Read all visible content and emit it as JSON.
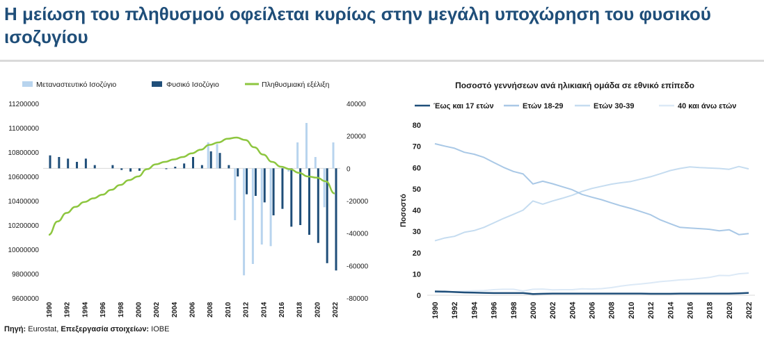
{
  "title": "Η μείωση του πληθυσμού οφείλεται κυρίως στην μεγάλη υποχώρηση του φυσικού ισοζυγίου",
  "source": {
    "label": "Πηγή:",
    "value": "Eurostat,",
    "label2": "Επεξεργασία στοιχείων:",
    "value2": "IOBE"
  },
  "colors": {
    "title": "#1f4e79",
    "migration": "#b8d4ee",
    "natural": "#1f4e79",
    "population": "#8dc63f",
    "under17": "#1f4e79",
    "age18_29": "#a9c8e6",
    "age30_39": "#c5dcf0",
    "age40plus": "#dce9f6"
  },
  "chart_data": [
    {
      "type": "bar+line",
      "title": "",
      "x": [
        "1990",
        "1991",
        "1992",
        "1993",
        "1994",
        "1995",
        "1996",
        "1997",
        "1998",
        "1999",
        "2000",
        "2001",
        "2002",
        "2003",
        "2004",
        "2005",
        "2006",
        "2007",
        "2008",
        "2009",
        "2010",
        "2011",
        "2012",
        "2013",
        "2014",
        "2015",
        "2016",
        "2017",
        "2018",
        "2019",
        "2020",
        "2021",
        "2022"
      ],
      "x_tick_labels": [
        "1990",
        "1992",
        "1994",
        "1996",
        "1998",
        "2000",
        "2002",
        "2004",
        "2006",
        "2008",
        "2010",
        "2012",
        "2014",
        "2016",
        "2018",
        "2020",
        "2022"
      ],
      "series": [
        {
          "name": "Μεταναστευτικό Ισοζύγιο",
          "kind": "bar",
          "axis": "right",
          "values": [
            0,
            0,
            0,
            0,
            0,
            0,
            0,
            0,
            0,
            0,
            0,
            0,
            0,
            0,
            0,
            0,
            0,
            0,
            16000,
            15000,
            0,
            -32000,
            -66000,
            -59000,
            -47000,
            -48000,
            0,
            -2000,
            16000,
            28000,
            7000,
            -24000,
            16000
          ]
        },
        {
          "name": "Φυσικό Ισοζύγιο",
          "kind": "bar",
          "axis": "right",
          "values": [
            8000,
            7000,
            6000,
            4000,
            6000,
            2000,
            0,
            2000,
            -1000,
            -2000,
            -1500,
            0,
            0,
            -500,
            1000,
            3000,
            7000,
            2000,
            10500,
            9500,
            2000,
            -5000,
            -16000,
            -17000,
            -21000,
            -29000,
            -25000,
            -36000,
            -35000,
            -41000,
            -46000,
            -58500,
            -63000
          ]
        },
        {
          "name": "Πληθυσμιακή εξέλιξη",
          "kind": "line",
          "axis": "left",
          "values": [
            10120000,
            10230000,
            10300000,
            10350000,
            10390000,
            10420000,
            10450000,
            10490000,
            10530000,
            10570000,
            10600000,
            10660000,
            10700000,
            10720000,
            10740000,
            10760000,
            10790000,
            10820000,
            10860000,
            10880000,
            10910000,
            10920000,
            10900000,
            10840000,
            10780000,
            10720000,
            10680000,
            10660000,
            10630000,
            10600000,
            10590000,
            10560000,
            10460000
          ]
        }
      ],
      "y_left": {
        "min": 9600000,
        "max": 11200000,
        "ticks": [
          "11200000",
          "11000000",
          "10800000",
          "10600000",
          "10400000",
          "10200000",
          "10000000",
          "9800000",
          "9600000"
        ]
      },
      "y_right": {
        "min": -80000,
        "max": 40000,
        "ticks": [
          "40000",
          "20000",
          "0",
          "-20000",
          "-40000",
          "-60000",
          "-80000"
        ]
      },
      "legend": "top"
    },
    {
      "type": "line",
      "title": "Ποσοστό γεννήσεων ανά ηλικιακή ομάδα σε εθνικό επίπεδο",
      "ylabel": "Ποσοστό",
      "ylim": [
        0,
        80
      ],
      "y_ticks": [
        "80",
        "70",
        "60",
        "50",
        "40",
        "30",
        "20",
        "10",
        "0"
      ],
      "x": [
        "1990",
        "1991",
        "1992",
        "1993",
        "1994",
        "1995",
        "1996",
        "1997",
        "1998",
        "1999",
        "2000",
        "2001",
        "2002",
        "2003",
        "2004",
        "2005",
        "2006",
        "2007",
        "2008",
        "2009",
        "2010",
        "2011",
        "2012",
        "2013",
        "2014",
        "2015",
        "2016",
        "2017",
        "2018",
        "2019",
        "2020",
        "2021",
        "2022"
      ],
      "x_tick_labels": [
        "1990",
        "1992",
        "1994",
        "1996",
        "1998",
        "2000",
        "2002",
        "2004",
        "2006",
        "2008",
        "2010",
        "2012",
        "2014",
        "2016",
        "2018",
        "2020",
        "2022"
      ],
      "series": [
        {
          "name": "Έως και 17 ετών",
          "values": [
            1.8,
            1.7,
            1.5,
            1.3,
            1.2,
            1.1,
            1.0,
            1.0,
            1.0,
            1.0,
            0.6,
            0.7,
            0.8,
            0.8,
            0.8,
            0.8,
            0.8,
            0.8,
            0.8,
            0.8,
            0.8,
            0.8,
            0.7,
            0.7,
            0.7,
            0.8,
            0.8,
            0.8,
            0.8,
            0.8,
            0.8,
            0.9,
            1.1
          ]
        },
        {
          "name": "Ετών 18-29",
          "values": [
            71.2,
            70.1,
            69.1,
            67.2,
            66.3,
            64.8,
            62.4,
            60.1,
            58.2,
            57.0,
            52.3,
            53.6,
            52.4,
            51.0,
            49.6,
            47.4,
            46.1,
            44.9,
            43.4,
            42.0,
            40.8,
            39.3,
            37.8,
            35.4,
            33.6,
            31.9,
            31.6,
            31.3,
            31.0,
            30.3,
            30.8,
            28.5,
            29.0
          ]
        },
        {
          "name": "Ετών 30-39",
          "values": [
            25.6,
            26.9,
            27.7,
            29.6,
            30.4,
            31.9,
            34.0,
            36.1,
            38.0,
            40.0,
            44.3,
            42.8,
            44.3,
            45.6,
            47.0,
            48.8,
            50.2,
            51.2,
            52.2,
            52.9,
            53.5,
            54.6,
            55.7,
            57.1,
            58.6,
            59.6,
            60.3,
            60.0,
            59.8,
            59.6,
            59.2,
            60.5,
            59.4
          ]
        },
        {
          "name": "40 και άνω ετών",
          "values": [
            1.4,
            1.3,
            1.7,
            1.9,
            2.1,
            2.2,
            2.6,
            2.8,
            2.8,
            2.0,
            2.8,
            2.9,
            2.5,
            2.6,
            2.6,
            3.0,
            2.9,
            3.1,
            3.6,
            4.3,
            4.9,
            5.3,
            5.8,
            6.4,
            6.8,
            7.2,
            7.4,
            7.9,
            8.4,
            9.3,
            9.2,
            10.1,
            10.4
          ]
        }
      ],
      "legend": "top"
    }
  ]
}
